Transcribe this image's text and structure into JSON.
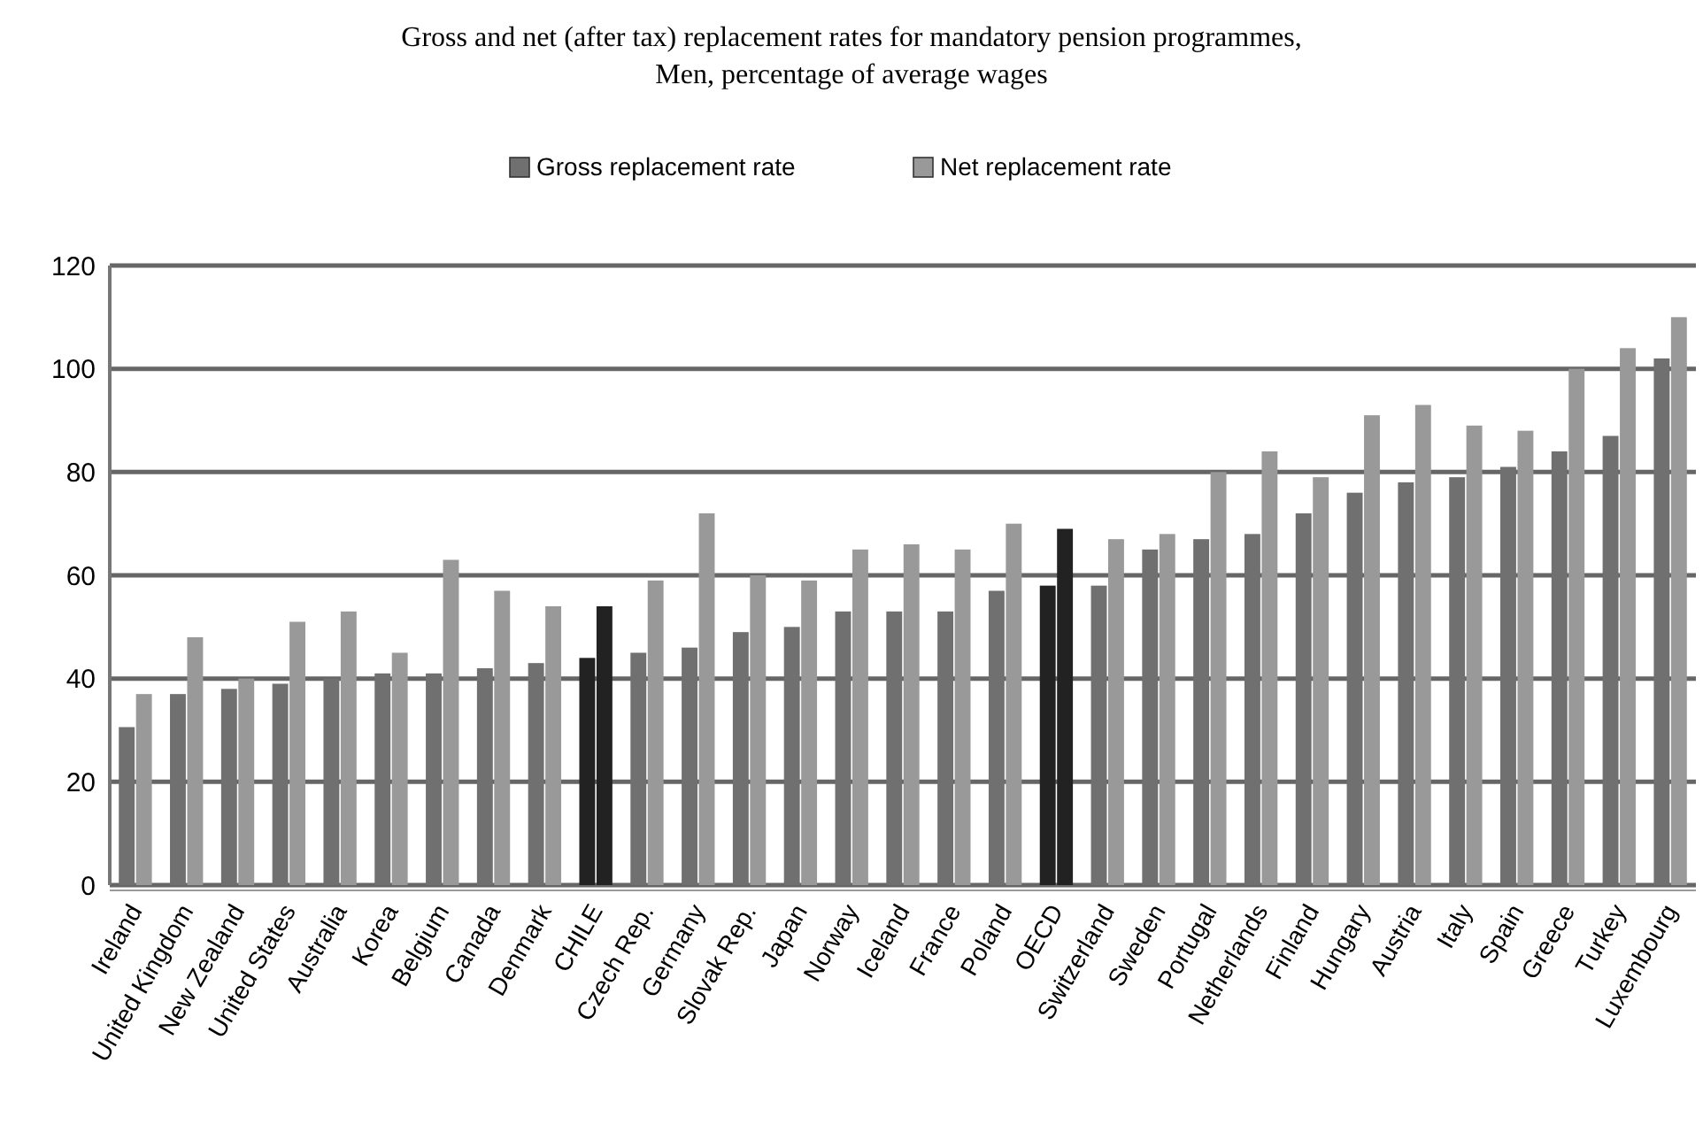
{
  "chart_data": {
    "type": "bar",
    "title": "Gross and net (after tax) replacement rates for mandatory pension programmes,\nMen, percentage of average wages",
    "categories": [
      "Ireland",
      "United Kingdom",
      "New Zealand",
      "United States",
      "Australia",
      "Korea",
      "Belgium",
      "Canada",
      "Denmark",
      "CHILE",
      "Czech Rep.",
      "Germany",
      "Slovak Rep.",
      "Japan",
      "Norway",
      "Iceland",
      "France",
      "Poland",
      "OECD",
      "Switzerland",
      "Sweden",
      "Portugal",
      "Netherlands",
      "Finland",
      "Hungary",
      "Austria",
      "Italy",
      "Spain",
      "Greece",
      "Turkey",
      "Luxembourg"
    ],
    "series": [
      {
        "name": "Gross replacement  rate",
        "color": "#707070",
        "colors": [
          "#707070",
          "#707070",
          "#707070",
          "#707070",
          "#707070",
          "#707070",
          "#707070",
          "#707070",
          "#707070",
          "#222222",
          "#707070",
          "#707070",
          "#707070",
          "#707070",
          "#707070",
          "#707070",
          "#707070",
          "#707070",
          "#222222",
          "#707070",
          "#707070",
          "#707070",
          "#707070",
          "#707070",
          "#707070",
          "#707070",
          "#707070",
          "#707070",
          "#707070",
          "#707070",
          "#707070"
        ],
        "values": [
          30.6,
          37,
          38,
          39,
          40,
          41,
          41,
          42,
          43,
          44,
          45,
          46,
          49,
          50,
          53,
          53,
          53,
          57,
          58,
          58,
          65,
          67,
          68,
          72,
          76,
          78,
          79,
          81,
          84,
          87,
          102
        ]
      },
      {
        "name": "Net replacement  rate",
        "color": "#999999",
        "colors": [
          "#999999",
          "#999999",
          "#999999",
          "#999999",
          "#999999",
          "#999999",
          "#999999",
          "#999999",
          "#999999",
          "#222222",
          "#999999",
          "#999999",
          "#999999",
          "#999999",
          "#999999",
          "#999999",
          "#999999",
          "#999999",
          "#222222",
          "#999999",
          "#999999",
          "#999999",
          "#999999",
          "#999999",
          "#999999",
          "#999999",
          "#999999",
          "#999999",
          "#999999",
          "#999999",
          "#999999"
        ],
        "values": [
          37,
          48,
          40,
          51,
          53,
          45,
          63,
          57,
          54,
          54,
          59,
          72,
          60,
          59,
          65,
          66,
          65,
          70,
          69,
          67,
          68,
          80,
          84,
          79,
          91,
          93,
          89,
          88,
          100,
          104,
          110
        ]
      }
    ],
    "ylim": [
      0,
      120
    ],
    "yticks": [
      0,
      20,
      40,
      60,
      80,
      100,
      120
    ],
    "grid": "y",
    "legend": "top"
  }
}
